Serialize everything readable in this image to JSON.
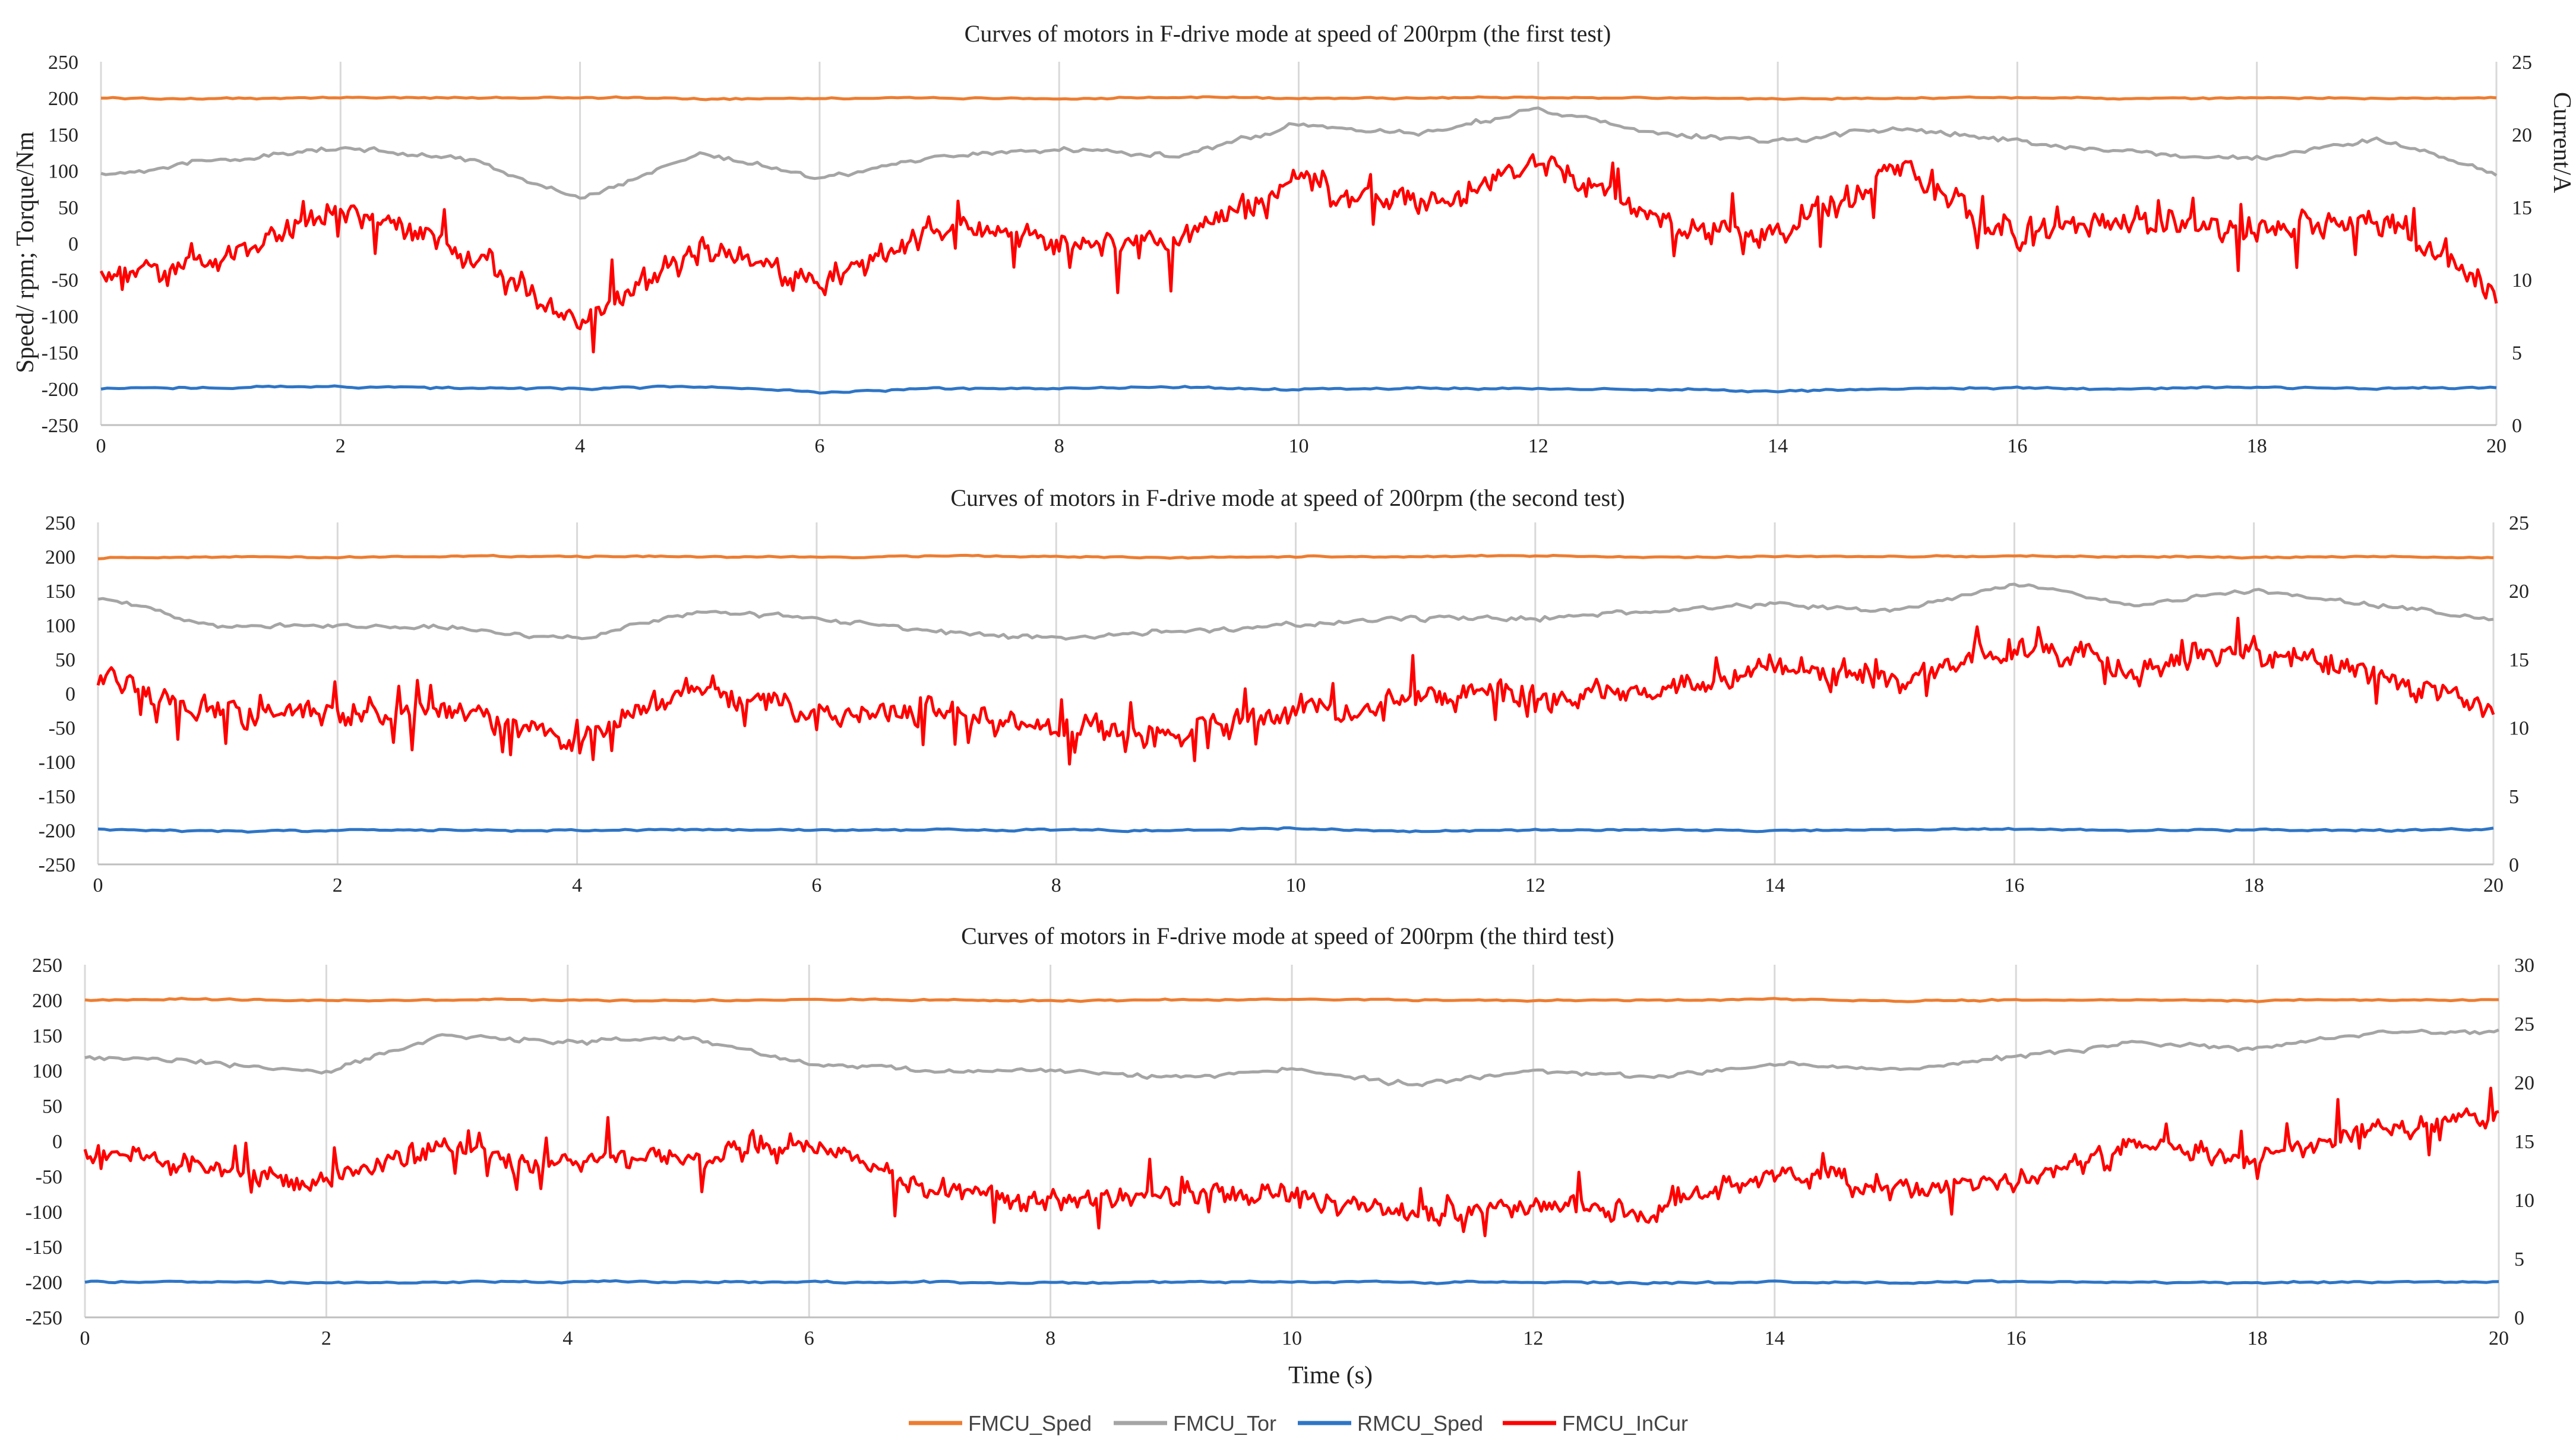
{
  "figure": {
    "shared_x_label": "Time (s)",
    "left_axis_label": "Speed/ rpm; Torque/Nm",
    "right_axis_label": "Current/A"
  },
  "legend": [
    {
      "name": "FMCU_Sped",
      "color": "#ED7D31"
    },
    {
      "name": "FMCU_Tor",
      "color": "#A5A5A5"
    },
    {
      "name": "RMCU_Sped",
      "color": "#2E75C6"
    },
    {
      "name": "FMCU_InCur",
      "color": "#FF0000"
    }
  ],
  "chart_data": [
    {
      "type": "line",
      "title": "Curves of motors in F-drive mode at speed of 200rpm  (the first test)",
      "xlabel": "",
      "ylabel": "Speed/ rpm; Torque/Nm",
      "y2label": "Current/A",
      "xlim": [
        0,
        20
      ],
      "ylim": [
        -250,
        250
      ],
      "y2lim": [
        0,
        25
      ],
      "x_ticks": [
        0,
        2,
        4,
        6,
        8,
        10,
        12,
        14,
        16,
        18,
        20
      ],
      "y_ticks": [
        -250,
        -200,
        -150,
        -100,
        -50,
        0,
        50,
        100,
        150,
        200,
        250
      ],
      "y2_ticks": [
        0,
        5,
        10,
        15,
        20,
        25
      ],
      "x": [
        0,
        1,
        2,
        3,
        4,
        5,
        6,
        7,
        8,
        9,
        10,
        11,
        12,
        13,
        14,
        15,
        16,
        17,
        18,
        19,
        20
      ],
      "series": [
        {
          "name": "FMCU_Sped",
          "axis": "left",
          "values": [
            200,
            199,
            201,
            200,
            201,
            199,
            200,
            200,
            199,
            201,
            200,
            200,
            201,
            200,
            199,
            200,
            201,
            199,
            200,
            200,
            200
          ]
        },
        {
          "name": "FMCU_Tor",
          "axis": "left",
          "values": [
            95,
            115,
            130,
            120,
            60,
            125,
            90,
            120,
            130,
            120,
            165,
            150,
            185,
            150,
            140,
            160,
            140,
            125,
            115,
            145,
            95
          ]
        },
        {
          "name": "RMCU_Sped",
          "axis": "left",
          "values": [
            -200,
            -198,
            -197,
            -199,
            -200,
            -197,
            -205,
            -200,
            -200,
            -198,
            -201,
            -199,
            -200,
            -201,
            -203,
            -200,
            -199,
            -200,
            -198,
            -200,
            -198
          ]
        },
        {
          "name": "FMCU_InCur",
          "axis": "right",
          "values": [
            10.5,
            11.5,
            15,
            12,
            7,
            12.5,
            9.5,
            13.5,
            13,
            12.5,
            17,
            15,
            18.5,
            14,
            13,
            17.5,
            13,
            14,
            13.5,
            14,
            9
          ]
        }
      ]
    },
    {
      "type": "line",
      "title": "Curves of motors in F-drive mode at speed of 200rpm  (the second test)",
      "xlabel": "",
      "ylabel": "Speed/ rpm; Torque/Nm",
      "y2label": "Current/A",
      "xlim": [
        0,
        20
      ],
      "ylim": [
        -250,
        250
      ],
      "y2lim": [
        0,
        25
      ],
      "x_ticks": [
        0,
        2,
        4,
        6,
        8,
        10,
        12,
        14,
        16,
        18,
        20
      ],
      "y_ticks": [
        -250,
        -200,
        -150,
        -100,
        -50,
        0,
        50,
        100,
        150,
        200,
        250
      ],
      "y2_ticks": [
        0,
        5,
        10,
        15,
        20,
        25
      ],
      "x": [
        0,
        1,
        2,
        3,
        4,
        5,
        6,
        7,
        8,
        9,
        10,
        11,
        12,
        13,
        14,
        15,
        16,
        17,
        18,
        19,
        20
      ],
      "series": [
        {
          "name": "FMCU_Sped",
          "axis": "left",
          "values": [
            198,
            200,
            199,
            201,
            200,
            200,
            199,
            201,
            200,
            198,
            200,
            200,
            201,
            199,
            200,
            200,
            201,
            200,
            199,
            200,
            198
          ]
        },
        {
          "name": "FMCU_Tor",
          "axis": "left",
          "values": [
            140,
            100,
            100,
            95,
            80,
            120,
            110,
            90,
            80,
            90,
            100,
            110,
            110,
            120,
            130,
            120,
            160,
            130,
            150,
            130,
            110
          ]
        },
        {
          "name": "RMCU_Sped",
          "axis": "left",
          "values": [
            -198,
            -202,
            -200,
            -200,
            -201,
            -199,
            -200,
            -199,
            -200,
            -201,
            -197,
            -202,
            -199,
            -200,
            -201,
            -200,
            -198,
            -201,
            -199,
            -200,
            -198
          ]
        },
        {
          "name": "FMCU_InCur",
          "axis": "right",
          "values": [
            14,
            11,
            11,
            11.5,
            9,
            13,
            11,
            11,
            10,
            9.5,
            11,
            12,
            12.5,
            12.5,
            14.5,
            13.5,
            16,
            14.5,
            15.5,
            14,
            11.5
          ]
        }
      ]
    },
    {
      "type": "line",
      "title": "Curves of motors in F-drive mode at speed of 200rpm  (the third test)",
      "xlabel": "Time (s)",
      "ylabel": "Speed/ rpm; Torque/Nm",
      "y2label": "Current/A",
      "xlim": [
        0,
        20
      ],
      "ylim": [
        -250,
        250
      ],
      "y2lim": [
        0,
        30
      ],
      "x_ticks": [
        0,
        2,
        4,
        6,
        8,
        10,
        12,
        14,
        16,
        18,
        20
      ],
      "y_ticks": [
        -250,
        -200,
        -150,
        -100,
        -50,
        0,
        50,
        100,
        150,
        200,
        250
      ],
      "y2_ticks": [
        0,
        5,
        10,
        15,
        20,
        25,
        30
      ],
      "x": [
        0,
        1,
        2,
        3,
        4,
        5,
        6,
        7,
        8,
        9,
        10,
        11,
        12,
        13,
        14,
        15,
        16,
        17,
        18,
        19,
        20
      ],
      "series": [
        {
          "name": "FMCU_Sped",
          "axis": "left",
          "values": [
            200,
            201,
            199,
            200,
            200,
            199,
            201,
            200,
            199,
            200,
            201,
            200,
            199,
            200,
            201,
            199,
            200,
            200,
            199,
            200,
            200
          ]
        },
        {
          "name": "FMCU_Tor",
          "axis": "left",
          "values": [
            120,
            110,
            100,
            150,
            140,
            145,
            110,
            100,
            100,
            90,
            100,
            80,
            100,
            90,
            110,
            100,
            120,
            140,
            130,
            155,
            155
          ]
        },
        {
          "name": "RMCU_Sped",
          "axis": "left",
          "values": [
            -200,
            -199,
            -201,
            -200,
            -199,
            -200,
            -200,
            -200,
            -201,
            -200,
            -199,
            -200,
            -200,
            -201,
            -200,
            -200,
            -199,
            -200,
            -201,
            -200,
            -199
          ]
        },
        {
          "name": "FMCU_InCur",
          "axis": "right",
          "values": [
            14,
            13,
            11.5,
            14.5,
            13,
            13.5,
            14.5,
            11,
            10,
            10.5,
            10.5,
            8.5,
            9.5,
            9,
            12.5,
            11,
            11.5,
            14.5,
            13.5,
            16,
            17
          ]
        }
      ]
    }
  ]
}
